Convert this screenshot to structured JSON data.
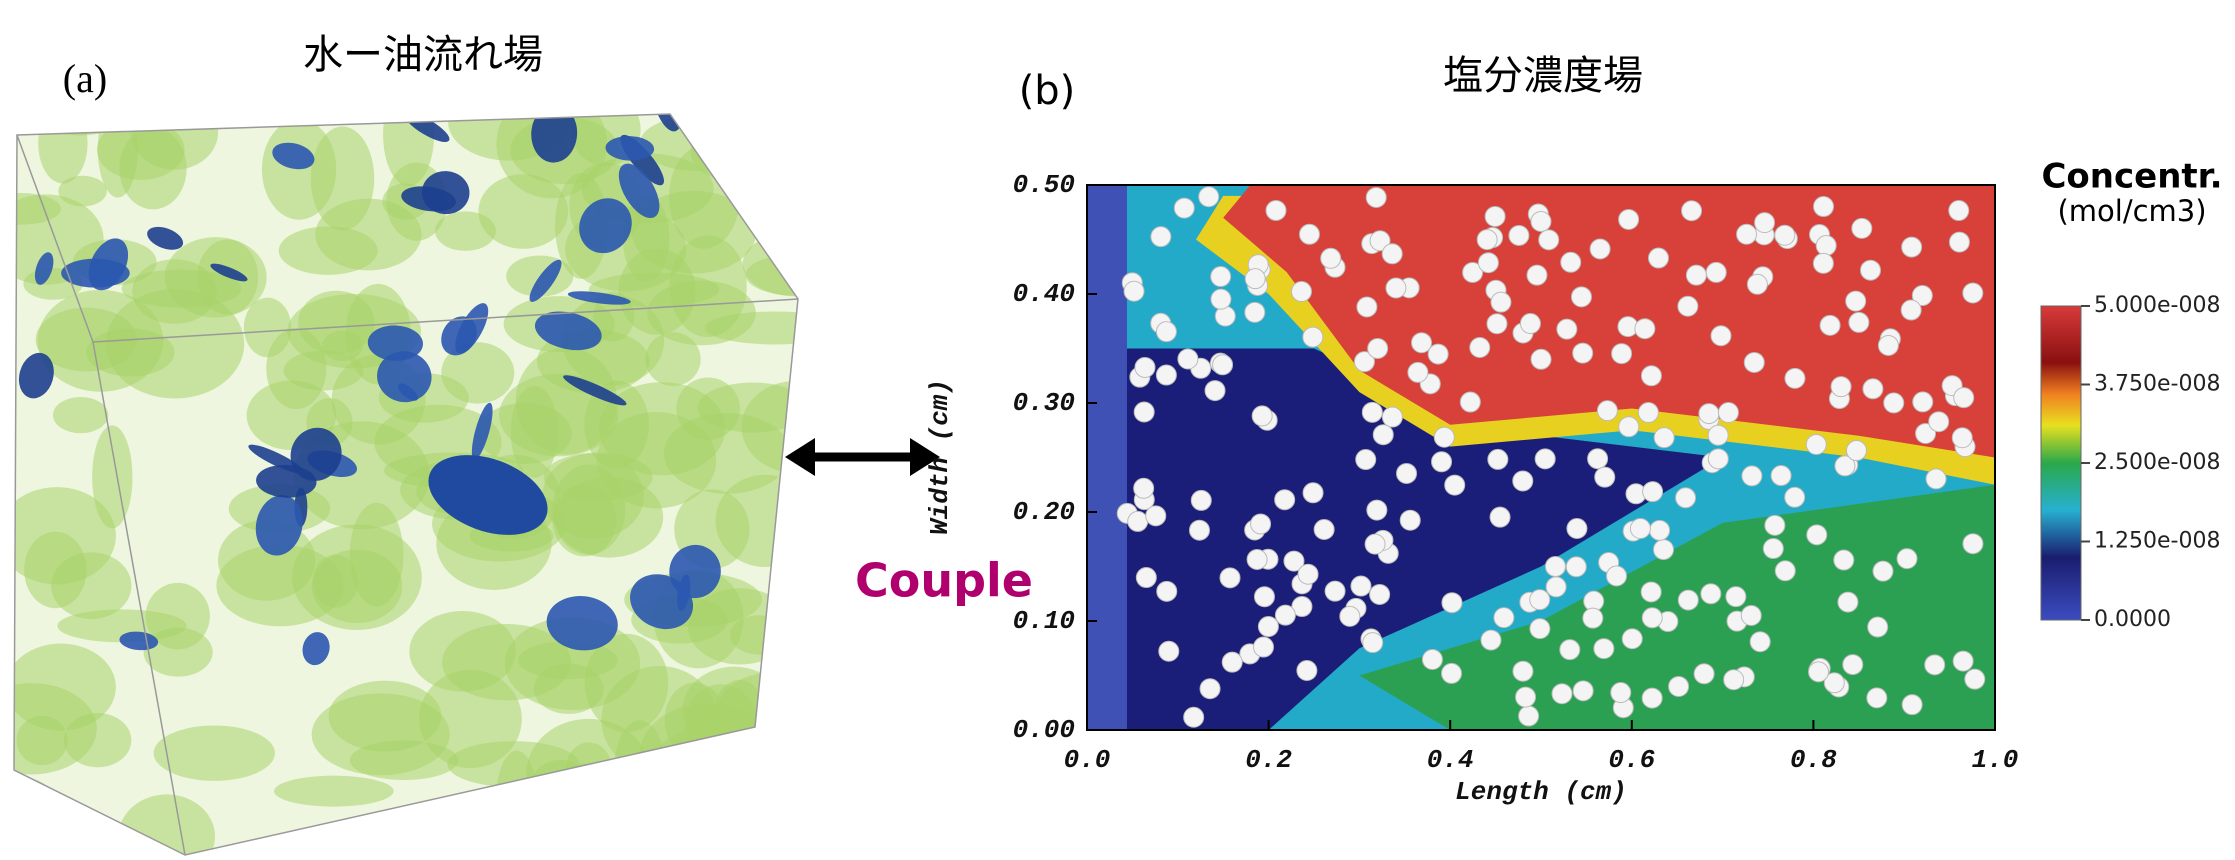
{
  "panel_a": {
    "label": "(a)",
    "title": "水ー油流れ場",
    "annotation": "Couple"
  },
  "panel_b": {
    "label": "(b)",
    "title": "塩分濃度場",
    "x_label": "Length (cm)",
    "y_label": "Width (cm)",
    "xlim": [
      0,
      1
    ],
    "ylim": [
      0,
      0.5
    ],
    "xticks": [
      {
        "value": 0,
        "label": "0.0"
      },
      0.2,
      0.4,
      0.6,
      0.8,
      {
        "value": 1,
        "label": "1.0"
      }
    ],
    "yticks": [
      {
        "value": 0,
        "label": "0.00"
      },
      {
        "value": 0.1,
        "label": "0.10"
      },
      {
        "value": 0.2,
        "label": "0.20"
      },
      {
        "value": 0.3,
        "label": "0.30"
      },
      {
        "value": 0.4,
        "label": "0.40"
      },
      {
        "value": 0.5,
        "label": "0.50"
      }
    ],
    "colorbar": {
      "title": "Concentr.",
      "unit": "(mol/cm3)",
      "lim": [
        0,
        5e-08
      ],
      "ticks": [
        {
          "value": 0,
          "label": "0.0000"
        },
        {
          "value": 1.25e-08,
          "label": "1.250e-008"
        },
        {
          "value": 2.5e-08,
          "label": "2.500e-008"
        },
        {
          "value": 3.75e-08,
          "label": "3.750e-008"
        },
        {
          "value": 5e-08,
          "label": "5.000e-008"
        }
      ]
    }
  }
}
